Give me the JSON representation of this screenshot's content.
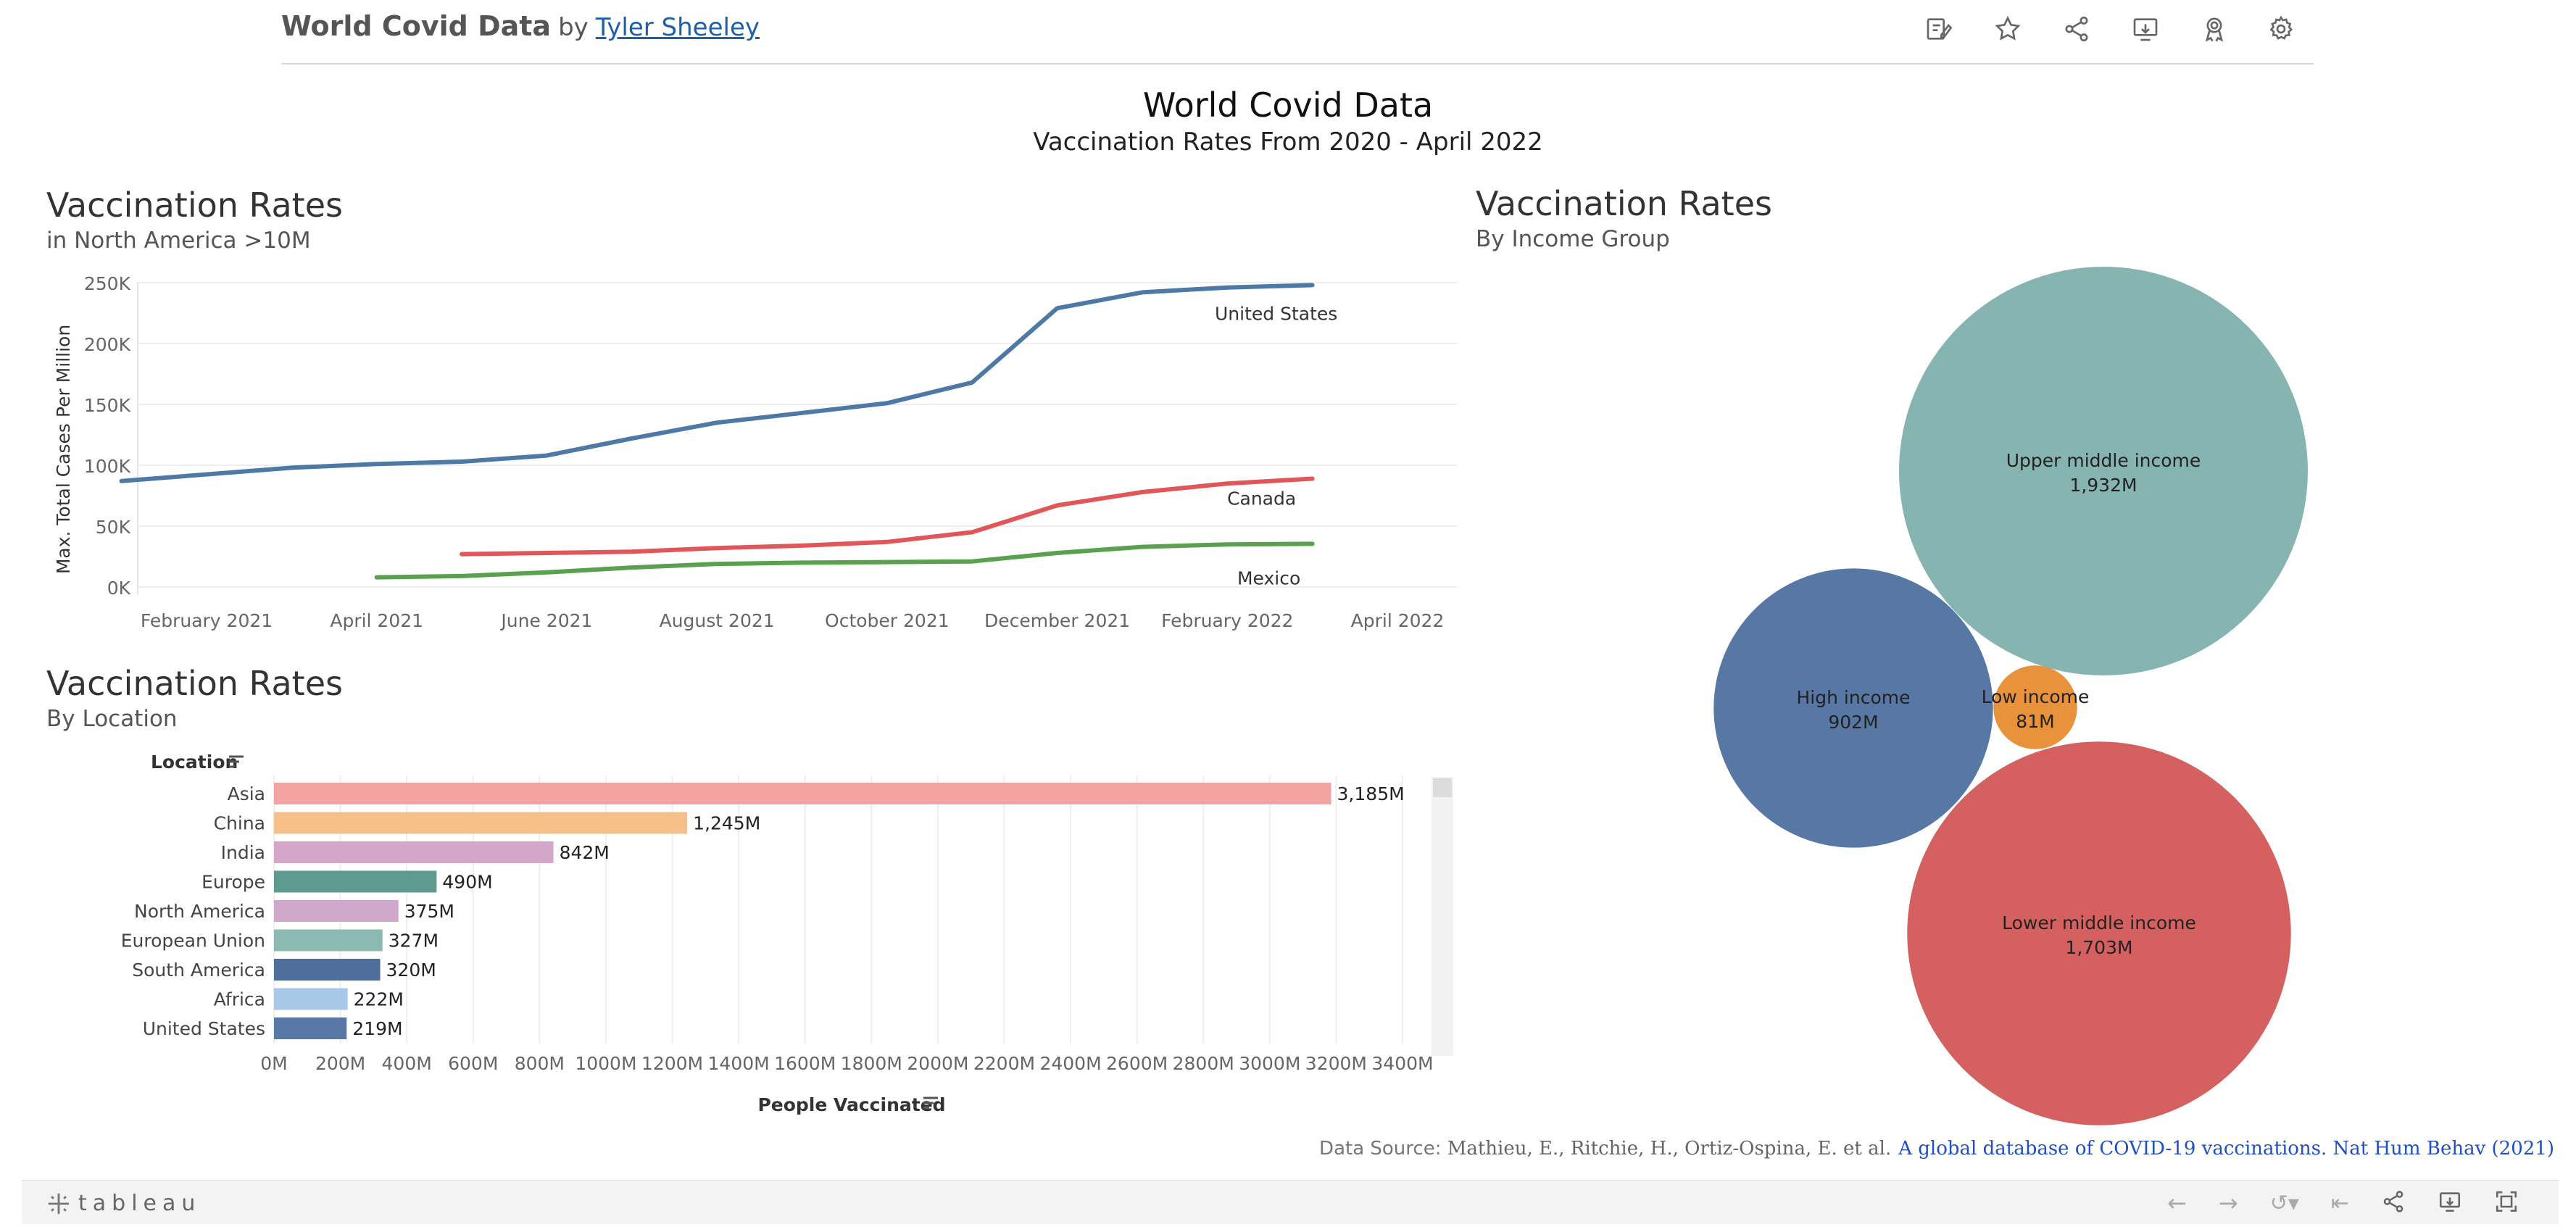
{
  "header": {
    "title": "World Covid Data",
    "by": "by",
    "author": "Tyler Sheeley",
    "toolbar": [
      {
        "name": "edit-icon"
      },
      {
        "name": "star-icon"
      },
      {
        "name": "share-icon"
      },
      {
        "name": "download-icon"
      },
      {
        "name": "award-icon"
      },
      {
        "name": "gear-icon"
      }
    ]
  },
  "dashboard": {
    "title": "World Covid Data",
    "subtitle": "Vaccination Rates From 2020 - April 2022"
  },
  "line_section": {
    "title": "Vaccination Rates",
    "subtitle": "in North America >10M"
  },
  "bar_section": {
    "title": "Vaccination Rates",
    "subtitle": "By Location"
  },
  "bubble_section": {
    "title": "Vaccination Rates",
    "subtitle": "By Income Group"
  },
  "source": {
    "label": "Data Source:",
    "citation": "Mathieu, E., Ritchie, H., Ortiz-Ospina, E. et al.",
    "link": "A global database of COVID-19 vaccinations. Nat Hum Behav (2021)"
  },
  "footer": {
    "logo": "tableau"
  },
  "colors": {
    "us": "#4e79a7",
    "canada": "#e15759",
    "mexico": "#59a14f"
  },
  "chart_data": [
    {
      "type": "line",
      "ylabel": "Max. Total Cases Per Million",
      "xlabel": "",
      "x_ticks": [
        "February 2021",
        "April 2021",
        "June 2021",
        "August 2021",
        "October 2021",
        "December 2021",
        "February 2022",
        "April 2022"
      ],
      "y_ticks": [
        "250K",
        "200K",
        "150K",
        "100K",
        "50K",
        "0K"
      ],
      "ylim": [
        0,
        250000
      ],
      "x": [
        "2021-01",
        "2021-03",
        "2021-04",
        "2021-05",
        "2021-06",
        "2021-07",
        "2021-08",
        "2021-09",
        "2021-10",
        "2021-11",
        "2021-12",
        "2022-01",
        "2022-02",
        "2022-03",
        "2022-04"
      ],
      "series": [
        {
          "name": "United States",
          "color": "#4e79a7",
          "values": [
            87000,
            98000,
            101000,
            103000,
            108000,
            122000,
            135000,
            143000,
            151000,
            168000,
            229000,
            242000,
            246000,
            248000,
            null
          ]
        },
        {
          "name": "Canada",
          "color": "#e15759",
          "values": [
            null,
            null,
            null,
            27000,
            28000,
            29000,
            32000,
            34000,
            37000,
            45000,
            67000,
            78000,
            85000,
            89000,
            null
          ]
        },
        {
          "name": "Mexico",
          "color": "#59a14f",
          "values": [
            null,
            null,
            8000,
            9000,
            12000,
            16000,
            19000,
            20000,
            20500,
            21000,
            28000,
            33000,
            35000,
            35500,
            null
          ]
        }
      ]
    },
    {
      "type": "bar",
      "orientation": "horizontal",
      "header": "Location",
      "xlabel": "People Vaccinated",
      "x_ticks": [
        "0M",
        "200M",
        "400M",
        "600M",
        "800M",
        "1000M",
        "1200M",
        "1400M",
        "1600M",
        "1800M",
        "2000M",
        "2200M",
        "2400M",
        "2600M",
        "2800M",
        "3000M",
        "3200M",
        "3400M"
      ],
      "xlim": [
        0,
        3600
      ],
      "categories": [
        "Asia",
        "China",
        "India",
        "Europe",
        "North America",
        "European Union",
        "South America",
        "Africa",
        "United States"
      ],
      "values": [
        3185,
        1245,
        842,
        490,
        375,
        327,
        320,
        222,
        219
      ],
      "labels": [
        "3,185M",
        "1,245M",
        "842M",
        "490M",
        "375M",
        "327M",
        "320M",
        "222M",
        "219M"
      ],
      "colors": [
        "#f4a3a3",
        "#f5c08a",
        "#d4a6c8",
        "#5f9a91",
        "#cfa8cc",
        "#8cbab3",
        "#4e6e9c",
        "#a8c8e8",
        "#5878a8"
      ]
    },
    {
      "type": "bubble",
      "items": [
        {
          "name": "Upper middle income",
          "label": "1,932M",
          "value": 1932,
          "color": "#86b4b1"
        },
        {
          "name": "High income",
          "label": "902M",
          "value": 902,
          "color": "#5777a4"
        },
        {
          "name": "Low income",
          "label": "81M",
          "value": 81,
          "color": "#e8923c"
        },
        {
          "name": "Lower middle income",
          "label": "1,703M",
          "value": 1703,
          "color": "#d46060"
        }
      ]
    }
  ]
}
